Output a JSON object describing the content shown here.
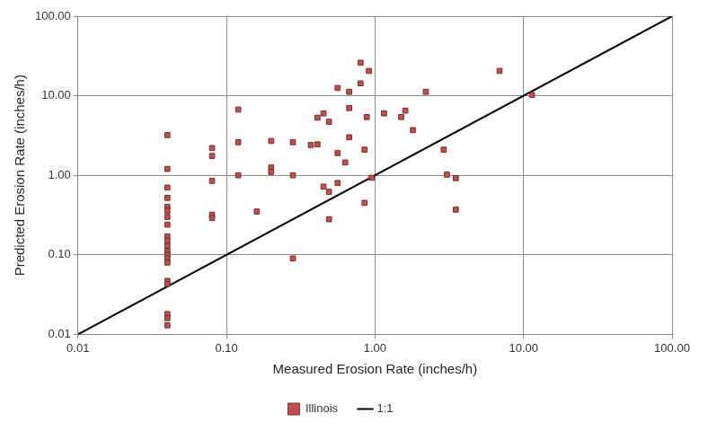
{
  "chart_data": {
    "type": "scatter",
    "x_label": "Measured Erosion Rate (inches/h)",
    "y_label": "Predicted Erosion Rate (inches/h)",
    "log": true,
    "grid": true,
    "legend": "bottom",
    "xlim": [
      0.01,
      100
    ],
    "ylim": [
      0.01,
      100
    ],
    "xticks": [
      0.01,
      {
        "value": 0.1,
        "label": "0.10"
      },
      {
        "value": 1,
        "label": "1.00"
      },
      {
        "value": 10,
        "label": "10.00"
      },
      {
        "value": 100,
        "label": "100.00"
      }
    ],
    "yticks": [
      0.01,
      {
        "value": 0.1,
        "label": "0.10"
      },
      {
        "value": 1,
        "label": "1.00"
      },
      {
        "value": 10,
        "label": "10.00"
      },
      {
        "value": 100,
        "label": "100.00"
      }
    ],
    "series": [
      {
        "name": "Illinois",
        "type": "scatter",
        "marker": "square",
        "color": "#c0504d",
        "x": [
          0.04,
          0.04,
          0.04,
          0.04,
          0.04,
          0.04,
          0.04,
          0.04,
          0.04,
          0.04,
          0.04,
          0.04,
          0.04,
          0.04,
          0.04,
          0.04,
          0.04,
          0.04,
          0.04,
          0.04,
          0.08,
          0.08,
          0.08,
          0.08,
          0.08,
          0.12,
          0.12,
          0.12,
          0.16,
          0.2,
          0.2,
          0.2,
          0.28,
          0.28,
          0.28,
          0.37,
          0.41,
          0.41,
          0.45,
          0.45,
          0.49,
          0.49,
          0.49,
          0.56,
          0.56,
          0.56,
          0.63,
          0.67,
          0.67,
          0.67,
          0.8,
          0.8,
          0.85,
          0.85,
          0.88,
          0.91,
          0.95,
          1.15,
          1.5,
          1.6,
          1.8,
          2.2,
          2.9,
          3.05,
          3.5,
          3.5,
          6.9,
          11.4
        ],
        "values": [
          3.2,
          1.2,
          0.7,
          0.52,
          0.4,
          0.36,
          0.3,
          0.24,
          0.17,
          0.15,
          0.13,
          0.11,
          0.1,
          0.09,
          0.08,
          0.047,
          0.043,
          0.018,
          0.016,
          0.013,
          2.2,
          1.75,
          0.85,
          0.32,
          0.29,
          6.7,
          2.6,
          1.0,
          0.35,
          2.7,
          1.25,
          1.1,
          2.6,
          1.0,
          0.09,
          2.4,
          2.45,
          5.3,
          6.0,
          0.72,
          4.7,
          0.62,
          0.28,
          12.5,
          1.9,
          0.8,
          1.45,
          11.2,
          7.0,
          3.0,
          26,
          14.3,
          2.1,
          0.45,
          5.4,
          20.5,
          0.93,
          6.0,
          5.4,
          6.5,
          3.7,
          11.2,
          2.1,
          1.02,
          0.92,
          0.37,
          20.5,
          10.2
        ]
      },
      {
        "name": "1:1",
        "type": "line",
        "line_style": "solid",
        "color": "#000000",
        "x": [
          0.01,
          100
        ],
        "values": [
          0.01,
          100
        ]
      }
    ]
  }
}
